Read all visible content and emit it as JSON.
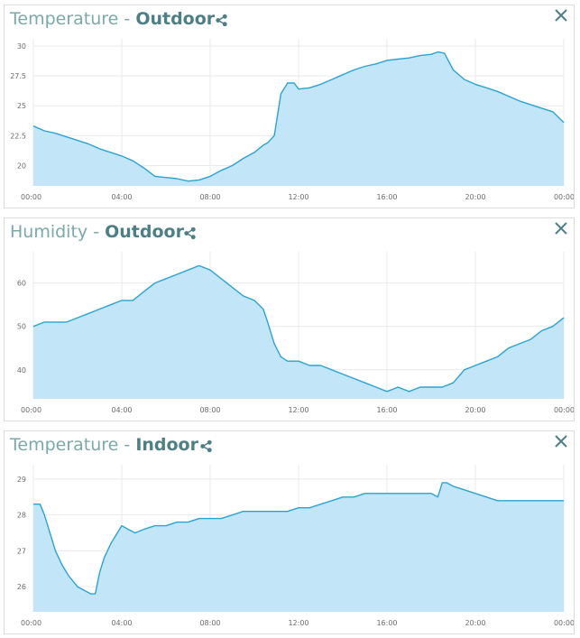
{
  "colors": {
    "line": "#2aa3d6",
    "fill": "#c2e6f7",
    "grid": "#e9e9e9",
    "title": "#7aa9a9",
    "title_bold": "#4d7f86"
  },
  "panels": [
    {
      "metric": "Temperature",
      "separator": "-",
      "location": "Outdoor"
    },
    {
      "metric": "Humidity",
      "separator": "-",
      "location": "Outdoor"
    },
    {
      "metric": "Temperature",
      "separator": "-",
      "location": "Indoor"
    }
  ],
  "chart_data": [
    {
      "type": "area",
      "title": "Temperature - Outdoor",
      "x_ticks": [
        "00:00",
        "04:00",
        "08:00",
        "12:00",
        "16:00",
        "20:00",
        "00:00"
      ],
      "y_ticks": [
        "30",
        "27.5",
        "25",
        "22.5",
        "20"
      ],
      "y_tick_values": [
        30,
        27.5,
        25,
        22.5,
        20
      ],
      "ylim": [
        18.3,
        30.6
      ],
      "xlim": [
        0,
        24
      ],
      "grid": true,
      "series": [
        {
          "x": [
            0,
            0.5,
            1,
            1.5,
            2,
            2.5,
            3,
            3.5,
            4,
            4.5,
            5,
            5.5,
            6,
            6.5,
            7,
            7.5,
            8,
            8.5,
            9,
            9.5,
            10,
            10.4,
            10.6,
            10.9,
            11.2,
            11.5,
            11.8,
            12,
            12.5,
            13,
            13.5,
            14,
            14.5,
            15,
            15.5,
            16,
            16.5,
            17,
            17.5,
            18,
            18.3,
            18.6,
            19,
            19.5,
            20,
            20.5,
            21,
            21.5,
            22,
            22.5,
            23,
            23.5,
            24
          ],
          "y": [
            23.3,
            22.9,
            22.7,
            22.4,
            22.1,
            21.8,
            21.4,
            21.1,
            20.8,
            20.4,
            19.8,
            19.1,
            19.0,
            18.9,
            18.7,
            18.8,
            19.1,
            19.6,
            20.0,
            20.6,
            21.1,
            21.7,
            21.9,
            22.5,
            26.0,
            26.9,
            26.9,
            26.4,
            26.5,
            26.8,
            27.2,
            27.6,
            28.0,
            28.3,
            28.5,
            28.8,
            28.9,
            29.0,
            29.2,
            29.3,
            29.5,
            29.4,
            28.0,
            27.2,
            26.8,
            26.5,
            26.2,
            25.8,
            25.4,
            25.1,
            24.8,
            24.5,
            23.6
          ]
        }
      ]
    },
    {
      "type": "area",
      "title": "Humidity - Outdoor",
      "x_ticks": [
        "00:00",
        "04:00",
        "08:00",
        "12:00",
        "16:00",
        "20:00",
        "00:00"
      ],
      "y_ticks": [
        "60",
        "50",
        "40"
      ],
      "y_tick_values": [
        60,
        50,
        40
      ],
      "ylim": [
        33.3,
        67.2
      ],
      "xlim": [
        0,
        24
      ],
      "grid": true,
      "series": [
        {
          "x": [
            0,
            0.5,
            1,
            1.5,
            2,
            2.5,
            3,
            3.5,
            4,
            4.5,
            5,
            5.5,
            6,
            6.5,
            7,
            7.5,
            8,
            8.5,
            9,
            9.5,
            10,
            10.4,
            10.6,
            10.9,
            11.2,
            11.5,
            12,
            12.5,
            13,
            13.5,
            14,
            14.5,
            15,
            15.5,
            16,
            16.5,
            17,
            17.5,
            18,
            18.5,
            19,
            19.5,
            20,
            20.5,
            21,
            21.5,
            22,
            22.5,
            23,
            23.5,
            24
          ],
          "y": [
            50,
            51,
            51,
            51,
            52,
            53,
            54,
            55,
            56,
            56,
            58,
            60,
            61,
            62,
            63,
            64,
            63,
            61,
            59,
            57,
            56,
            54,
            51,
            46,
            43,
            42,
            42,
            41,
            41,
            40,
            39,
            38,
            37,
            36,
            35,
            36,
            35,
            36,
            36,
            36,
            37,
            40,
            41,
            42,
            43,
            45,
            46,
            47,
            49,
            50,
            52
          ]
        }
      ]
    },
    {
      "type": "area",
      "title": "Temperature - Indoor",
      "x_ticks": [
        "00:00",
        "04:00",
        "08:00",
        "12:00",
        "16:00",
        "20:00",
        "00:00"
      ],
      "y_ticks": [
        "29",
        "28",
        "27",
        "26"
      ],
      "y_tick_values": [
        29,
        28,
        27,
        26
      ],
      "ylim": [
        25.3,
        29.4
      ],
      "xlim": [
        0,
        24
      ],
      "grid": true,
      "series": [
        {
          "x": [
            0,
            0.3,
            0.5,
            0.8,
            1,
            1.3,
            1.6,
            2,
            2.3,
            2.6,
            2.8,
            3,
            3.2,
            3.5,
            3.8,
            4,
            4.3,
            4.6,
            5,
            5.5,
            6,
            6.5,
            7,
            7.5,
            8,
            8.5,
            9,
            9.5,
            10,
            10.5,
            11,
            11.5,
            12,
            12.5,
            13,
            13.5,
            14,
            14.5,
            15,
            15.5,
            16,
            16.5,
            17,
            17.5,
            18,
            18.3,
            18.5,
            18.7,
            19,
            19.5,
            20,
            20.5,
            21,
            21.5,
            22,
            22.5,
            23,
            23.5,
            24
          ],
          "y": [
            28.3,
            28.3,
            28.0,
            27.4,
            27.0,
            26.6,
            26.3,
            26.0,
            25.9,
            25.8,
            25.8,
            26.4,
            26.8,
            27.2,
            27.5,
            27.7,
            27.6,
            27.5,
            27.6,
            27.7,
            27.7,
            27.8,
            27.8,
            27.9,
            27.9,
            27.9,
            28.0,
            28.1,
            28.1,
            28.1,
            28.1,
            28.1,
            28.2,
            28.2,
            28.3,
            28.4,
            28.5,
            28.5,
            28.6,
            28.6,
            28.6,
            28.6,
            28.6,
            28.6,
            28.6,
            28.5,
            28.9,
            28.9,
            28.8,
            28.7,
            28.6,
            28.5,
            28.4,
            28.4,
            28.4,
            28.4,
            28.4,
            28.4,
            28.4
          ]
        }
      ]
    }
  ]
}
